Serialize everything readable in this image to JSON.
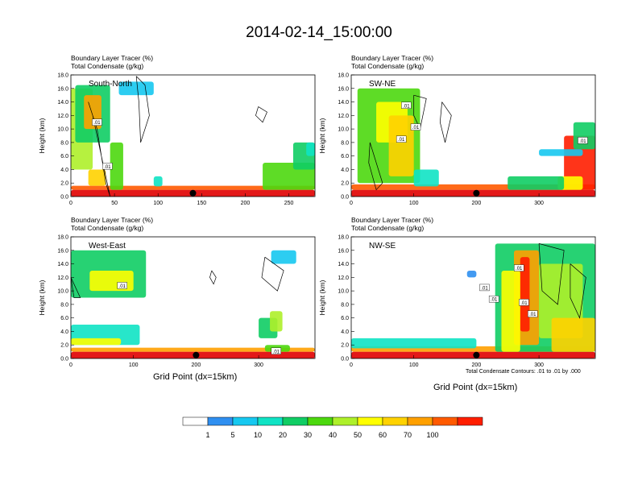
{
  "title": "2014-02-14_15:00:00",
  "contour_note": "Total Condensate Contours: .01 to .01 by .000",
  "xaxis_label": "Grid Point (dx=15km)",
  "colors": [
    "#ffffff",
    "#2f8ff0",
    "#16c8f0",
    "#10e3c4",
    "#10cd64",
    "#4cd80e",
    "#aef02a",
    "#ffff00",
    "#ffd200",
    "#ffa000",
    "#ff5a00",
    "#ff1e00",
    "#e00000"
  ],
  "chart_data": [
    {
      "type": "heatmap",
      "title_line1": "Boundary Layer Tracer   (%)",
      "title_line2": "Total Condensate   (g/kg)",
      "panel_label": "South-North",
      "ylabel": "Height (km)",
      "ylim": [
        0,
        18
      ],
      "yticks": [
        "0.0",
        "2.0",
        "4.0",
        "6.0",
        "8.0",
        "10.0",
        "12.0",
        "14.0",
        "16.0",
        "18.0"
      ],
      "xlim": [
        0,
        280
      ],
      "xticks": [
        "0",
        "50",
        "100",
        "150",
        "200",
        "250"
      ],
      "xtick_values": [
        0,
        50,
        100,
        150,
        200,
        250
      ],
      "marker_x": 140,
      "contour_labels": [
        {
          "text": ".01",
          "x": 30,
          "y": 11
        },
        {
          "text": ".01",
          "x": 42,
          "y": 4.5
        }
      ]
    },
    {
      "type": "heatmap",
      "title_line1": "Boundary Layer Tracer   (%)",
      "title_line2": "Total Condensate   (g/kg)",
      "panel_label": "SW-NE",
      "ylabel": "Height (km)",
      "ylim": [
        0,
        18
      ],
      "yticks": [
        "0.0",
        "2.0",
        "4.0",
        "6.0",
        "8.0",
        "10.0",
        "12.0",
        "14.0",
        "16.0",
        "18.0"
      ],
      "xlim": [
        0,
        390
      ],
      "xticks": [
        "0",
        "100",
        "200",
        "300"
      ],
      "xtick_values": [
        0,
        100,
        200,
        300
      ],
      "marker_x": 200,
      "contour_labels": [
        {
          "text": ".01",
          "x": 88,
          "y": 13.5
        },
        {
          "text": ".01",
          "x": 103,
          "y": 10.3
        },
        {
          "text": ".01",
          "x": 80,
          "y": 8.5
        },
        {
          "text": ".01",
          "x": 370,
          "y": 8.3
        }
      ]
    },
    {
      "type": "heatmap",
      "title_line1": "Boundary Layer Tracer   (%)",
      "title_line2": "Total Condensate   (g/kg)",
      "panel_label": "West-East",
      "ylabel": "Height (km)",
      "ylim": [
        0,
        18
      ],
      "yticks": [
        "0.0",
        "2.0",
        "4.0",
        "6.0",
        "8.0",
        "10.0",
        "12.0",
        "14.0",
        "16.0",
        "18.0"
      ],
      "xlim": [
        0,
        390
      ],
      "xticks": [
        "0",
        "100",
        "200",
        "300"
      ],
      "xtick_values": [
        0,
        100,
        200,
        300
      ],
      "marker_x": 200,
      "contour_labels": [
        {
          "text": ".01",
          "x": 82,
          "y": 10.8
        },
        {
          "text": ".01",
          "x": 328,
          "y": 1.1
        }
      ]
    },
    {
      "type": "heatmap",
      "title_line1": "Boundary Layer Tracer   (%)",
      "title_line2": "Total Condensate   (g/kg)",
      "panel_label": "NW-SE",
      "ylabel": "Height (km)",
      "ylim": [
        0,
        18
      ],
      "yticks": [
        "0.0",
        "2.0",
        "4.0",
        "6.0",
        "8.0",
        "10.0",
        "12.0",
        "14.0",
        "16.0",
        "18.0"
      ],
      "xlim": [
        0,
        390
      ],
      "xticks": [
        "0",
        "100",
        "200",
        "300"
      ],
      "xtick_values": [
        0,
        100,
        200,
        300
      ],
      "marker_x": 200,
      "contour_labels": [
        {
          "text": ".01",
          "x": 268,
          "y": 13.4
        },
        {
          "text": ".01",
          "x": 213,
          "y": 10.5
        },
        {
          "text": ".01",
          "x": 228,
          "y": 8.8
        },
        {
          "text": ".01",
          "x": 276,
          "y": 8.3
        },
        {
          "text": ".01",
          "x": 290,
          "y": 6.6
        }
      ]
    }
  ],
  "colorbar": {
    "labels": [
      "1",
      "5",
      "10",
      "20",
      "30",
      "40",
      "50",
      "60",
      "70",
      "100"
    ]
  }
}
